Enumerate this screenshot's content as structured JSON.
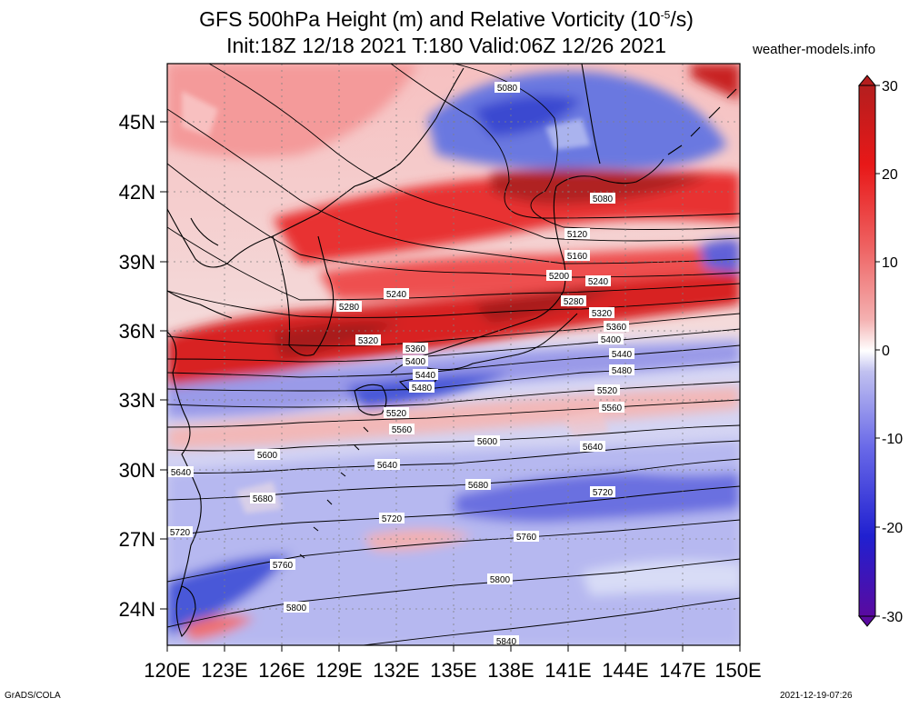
{
  "title_line1": "GFS 500hPa Height (m) and Relative Vorticity (10",
  "title_line1_sup": "-5",
  "title_line1_end": "/s)",
  "title_line2": "Init:18Z 12/18 2021 T:180 Valid:06Z 12/26 2021",
  "site": "weather-models.info",
  "footer_left": "GrADS/COLA",
  "footer_right": "2021-12-19-07:26",
  "lat_labels": [
    "45N",
    "42N",
    "39N",
    "36N",
    "33N",
    "30N",
    "27N",
    "24N"
  ],
  "lon_labels": [
    "120E",
    "123E",
    "126E",
    "129E",
    "132E",
    "135E",
    "138E",
    "141E",
    "144E",
    "147E",
    "150E"
  ],
  "colorbar": {
    "labels": [
      "30",
      "20",
      "10",
      "0",
      "-10",
      "-20",
      "-30"
    ],
    "colors": [
      "#5a0aa0",
      "#2020d0",
      "#6a6ae8",
      "#b8b8f0",
      "#ffffff",
      "#f4b0b0",
      "#ee6060",
      "#e81818",
      "#b41e1e"
    ]
  },
  "contour_labels": {
    "west_row": [
      "5280",
      "5320"
    ],
    "central_row": [
      "5240",
      "5360",
      "5400",
      "5440",
      "5480"
    ],
    "east_column": [
      "5080",
      "5080",
      "5120",
      "5160",
      "5200",
      "5240",
      "5280",
      "5320",
      "5360",
      "5400",
      "5440",
      "5480",
      "5520",
      "5560",
      "5600",
      "5640",
      "5680",
      "5720",
      "5760",
      "5800",
      "5840"
    ],
    "south_column": [
      "5520",
      "5560",
      "5600",
      "5640",
      "5640",
      "5680",
      "5720",
      "5720",
      "5760",
      "5800"
    ]
  }
}
